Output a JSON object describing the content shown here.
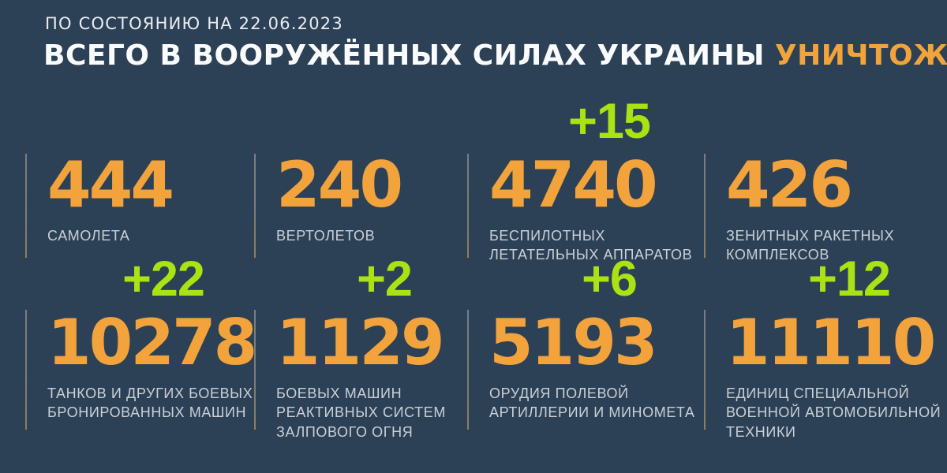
{
  "meta": {
    "date_label": "ПО СОСТОЯНИЮ НА 22.06.2023"
  },
  "headline": {
    "prefix": "ВСЕГО В ВООРУЖЁННЫХ СИЛАХ УКРАИНЫ ",
    "highlight": "УНИЧТОЖЕНО:"
  },
  "colors": {
    "background": "#2d4156",
    "number_orange": "#f2a33c",
    "delta_green": "#abe214",
    "headline_white": "#fafbfd",
    "label_gray": "#c9d0d8",
    "divider_gray": "#8d8672"
  },
  "stats": [
    {
      "value": "444",
      "delta": "",
      "label": "САМОЛЕТА"
    },
    {
      "value": "240",
      "delta": "",
      "label": "ВЕРТОЛЕТОВ"
    },
    {
      "value": "4740",
      "delta": "+15",
      "label": "БЕСПИЛОТНЫХ\nЛЕТАТЕЛЬНЫХ АППАРАТОВ"
    },
    {
      "value": "426",
      "delta": "",
      "label": "ЗЕНИТНЫХ РАКЕТНЫХ\nКОМПЛЕКСОВ"
    },
    {
      "value": "10278",
      "delta": "+22",
      "label": "ТАНКОВ И ДРУГИХ БОЕВЫХ\nБРОНИРОВАННЫХ МАШИН"
    },
    {
      "value": "1129",
      "delta": "+2",
      "label": "БОЕВЫХ МАШИН\nРЕАКТИВНЫХ СИСТЕМ\nЗАЛПОВОГО ОГНЯ"
    },
    {
      "value": "5193",
      "delta": "+6",
      "label": "ОРУДИЯ ПОЛЕВОЙ\nАРТИЛЛЕРИИ И МИНОМЕТА"
    },
    {
      "value": "11110",
      "delta": "+12",
      "label": "ЕДИНИЦ СПЕЦИАЛЬНОЙ\nВОЕННОЙ АВТОМОБИЛЬНОЙ\nТЕХНИКИ"
    }
  ],
  "chart_data": {
    "type": "table",
    "title": "ВСЕГО В ВООРУЖЁННЫХ СИЛАХ УКРАИНЫ УНИЧТОЖЕНО:",
    "subtitle": "ПО СОСТОЯНИЮ НА 22.06.2023",
    "categories": [
      "САМОЛЕТА",
      "ВЕРТОЛЕТОВ",
      "БЕСПИЛОТНЫХ ЛЕТАТЕЛЬНЫХ АППАРАТОВ",
      "ЗЕНИТНЫХ РАКЕТНЫХ КОМПЛЕКСОВ",
      "ТАНКОВ И ДРУГИХ БОЕВЫХ БРОНИРОВАННЫХ МАШИН",
      "БОЕВЫХ МАШИН РЕАКТИВНЫХ СИСТЕМ ЗАЛПОВОГО ОГНЯ",
      "ОРУДИЯ ПОЛЕВОЙ АРТИЛЛЕРИИ И МИНОМЕТА",
      "ЕДИНИЦ СПЕЦИАЛЬНОЙ ВОЕННОЙ АВТОМОБИЛЬНОЙ ТЕХНИКИ"
    ],
    "values": [
      444,
      240,
      4740,
      426,
      10278,
      1129,
      5193,
      11110
    ],
    "deltas": [
      null,
      null,
      15,
      null,
      22,
      2,
      6,
      12
    ],
    "legend_position": "none",
    "grid": false
  }
}
